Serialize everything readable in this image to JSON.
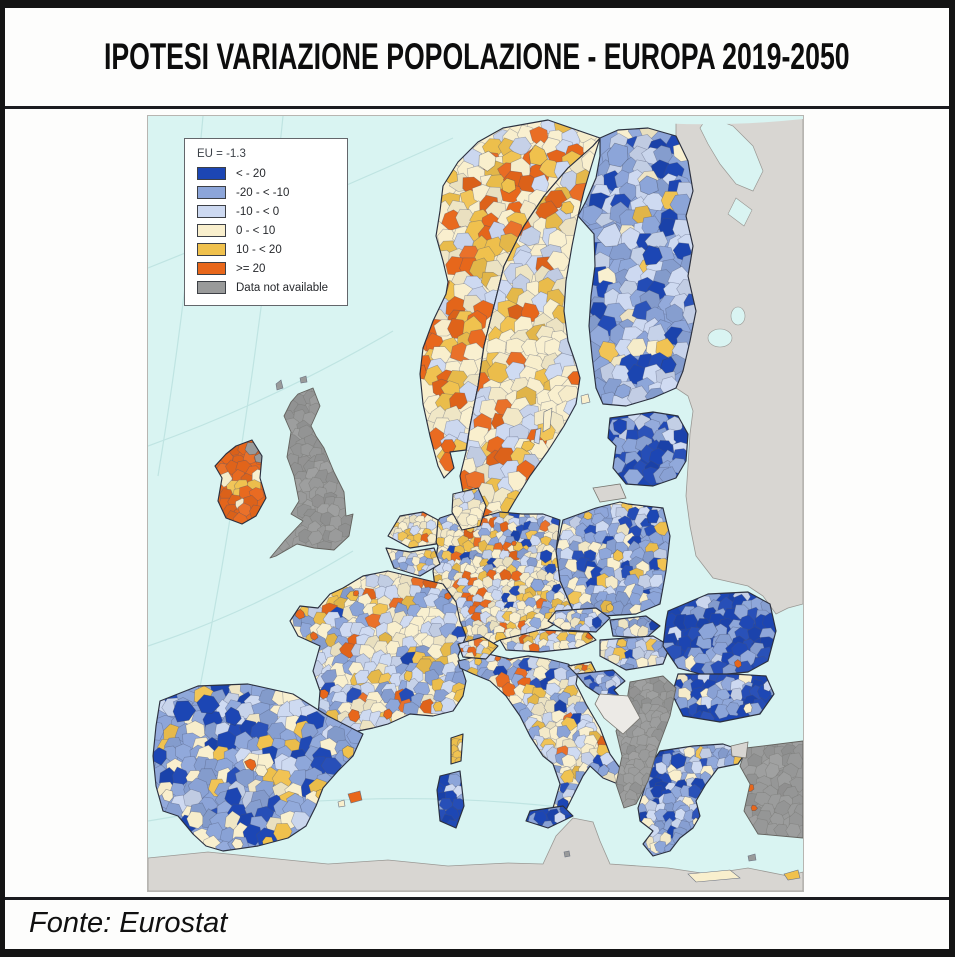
{
  "page": {
    "title": "IPOTESI VARIAZIONE POPOLAZIONE - EUROPA 2019-2050",
    "source": "Fonte: Eurostat"
  },
  "map": {
    "legend": {
      "title": "EU = -1.3",
      "classes": [
        {
          "key": "b3",
          "label": "< - 20",
          "color": "#1c46b4"
        },
        {
          "key": "b2",
          "label": "-20 - < -10",
          "color": "#8ca5d9"
        },
        {
          "key": "b1",
          "label": "-10 - < 0",
          "color": "#cdd9f1"
        },
        {
          "key": "g1",
          "label": "0 - < 10",
          "color": "#f9efcd"
        },
        {
          "key": "g2",
          "label": "10 - < 20",
          "color": "#f0c14d"
        },
        {
          "key": "g3",
          "label": ">= 20",
          "color": "#e8671b"
        },
        {
          "key": "nd",
          "label": "Data not available",
          "color": "#999a9a"
        }
      ]
    },
    "colors": {
      "sea": "#d9f4f2",
      "non_eu_land": "#d8d6d2",
      "no_data_plain": "#eceae6",
      "graticule": "#bfe4e2",
      "border": "#2c3140",
      "coast": "#9a9894"
    },
    "regions": [
      {
        "id": "norway",
        "name": "Norway",
        "classes": {
          "g1": 40,
          "g3": 24,
          "g2": 22,
          "b1": 14
        }
      },
      {
        "id": "sweden",
        "name": "Sweden",
        "classes": {
          "g1": 52,
          "g2": 16,
          "g3": 12,
          "b1": 20
        }
      },
      {
        "id": "finland",
        "name": "Finland",
        "classes": {
          "b2": 38,
          "b1": 34,
          "b3": 20,
          "g1": 5,
          "g2": 3
        }
      },
      {
        "id": "baltics",
        "name": "Estonia-Latvia-Lithuania",
        "classes": {
          "b3": 60,
          "b2": 30,
          "b1": 10
        }
      },
      {
        "id": "poland",
        "name": "Poland",
        "classes": {
          "b2": 42,
          "b1": 20,
          "b3": 16,
          "g1": 12,
          "g2": 8,
          "g3": 2
        }
      },
      {
        "id": "germany",
        "name": "Germany",
        "classes": {
          "g1": 38,
          "b1": 22,
          "b2": 14,
          "g2": 12,
          "g3": 8,
          "b3": 6
        }
      },
      {
        "id": "france",
        "name": "France",
        "classes": {
          "g1": 30,
          "b1": 25,
          "b2": 25,
          "g2": 8,
          "g3": 7,
          "b3": 5
        }
      },
      {
        "id": "iberia",
        "name": "Spain-Portugal",
        "classes": {
          "b2": 36,
          "b3": 22,
          "g1": 18,
          "b1": 14,
          "g2": 10
        }
      },
      {
        "id": "italy",
        "name": "Italy",
        "classes": {
          "g1": 28,
          "b1": 26,
          "b2": 26,
          "b3": 10,
          "g2": 7,
          "g3": 3
        }
      },
      {
        "id": "denmark",
        "name": "Denmark",
        "classes": {
          "g1": 55,
          "b1": 28,
          "g2": 12,
          "b2": 5
        }
      },
      {
        "id": "netherlands",
        "name": "Netherlands",
        "classes": {
          "g1": 42,
          "g2": 30,
          "b1": 14,
          "g3": 7,
          "b2": 7
        }
      },
      {
        "id": "belgium",
        "name": "Belgium-Luxembourg",
        "classes": {
          "g1": 38,
          "b1": 24,
          "g2": 16,
          "b2": 16,
          "g3": 6
        }
      },
      {
        "id": "czechia",
        "name": "Czechia",
        "classes": {
          "b2": 34,
          "b1": 30,
          "g1": 26,
          "g2": 5,
          "b3": 5
        }
      },
      {
        "id": "austria",
        "name": "Austria",
        "classes": {
          "g1": 40,
          "b1": 20,
          "g2": 15,
          "b2": 15,
          "g3": 10
        }
      },
      {
        "id": "slovakia",
        "name": "Slovakia",
        "classes": {
          "b2": 40,
          "b1": 28,
          "g1": 22,
          "b3": 10
        }
      },
      {
        "id": "hungary",
        "name": "Hungary",
        "classes": {
          "b1": 34,
          "b2": 30,
          "g1": 20,
          "g2": 10,
          "b3": 6
        }
      },
      {
        "id": "switzerland",
        "name": "Switzerland",
        "classes": {
          "g2": 34,
          "g1": 30,
          "g3": 20,
          "b1": 16
        }
      },
      {
        "id": "slovenia",
        "name": "Slovenia",
        "classes": {
          "g1": 45,
          "g2": 25,
          "b1": 20,
          "g3": 10
        }
      },
      {
        "id": "croatia",
        "name": "Croatia",
        "classes": {
          "b2": 40,
          "b1": 28,
          "g1": 22,
          "b3": 10
        }
      },
      {
        "id": "romania",
        "name": "Romania",
        "classes": {
          "b3": 56,
          "b2": 30,
          "b1": 10,
          "g1": 4
        }
      },
      {
        "id": "bulgaria",
        "name": "Bulgaria",
        "classes": {
          "b3": 50,
          "b2": 26,
          "b1": 14,
          "g1": 10
        }
      },
      {
        "id": "greece",
        "name": "Greece",
        "classes": {
          "b2": 40,
          "b1": 25,
          "b3": 20,
          "g1": 12,
          "g2": 3
        }
      },
      {
        "id": "ireland",
        "name": "Ireland",
        "classes": {
          "g3": 76,
          "g2": 14,
          "g1": 10
        }
      },
      {
        "id": "uk",
        "name": "United Kingdom",
        "classes": {
          "nd": 100
        }
      },
      {
        "id": "balkans",
        "name": "Western Balkans",
        "classes": {
          "nd": 100
        }
      },
      {
        "id": "turkey",
        "name": "Turkey",
        "classes": {
          "nd": 100
        }
      },
      {
        "id": "sicily",
        "name": "Sicily",
        "classes": {
          "b3": 45,
          "b2": 40,
          "b1": 15
        }
      },
      {
        "id": "sardinia",
        "name": "Sardinia",
        "classes": {
          "b3": 68,
          "b2": 22,
          "b1": 10
        }
      },
      {
        "id": "corsica",
        "name": "Corsica",
        "classes": {
          "g2": 75,
          "g1": 25
        }
      }
    ],
    "context_areas": [
      "Russia-Belarus-Ukraine",
      "Kaliningrad",
      "North Africa",
      "Bosnia and Herzegovina",
      "Turkish Thrace"
    ]
  }
}
